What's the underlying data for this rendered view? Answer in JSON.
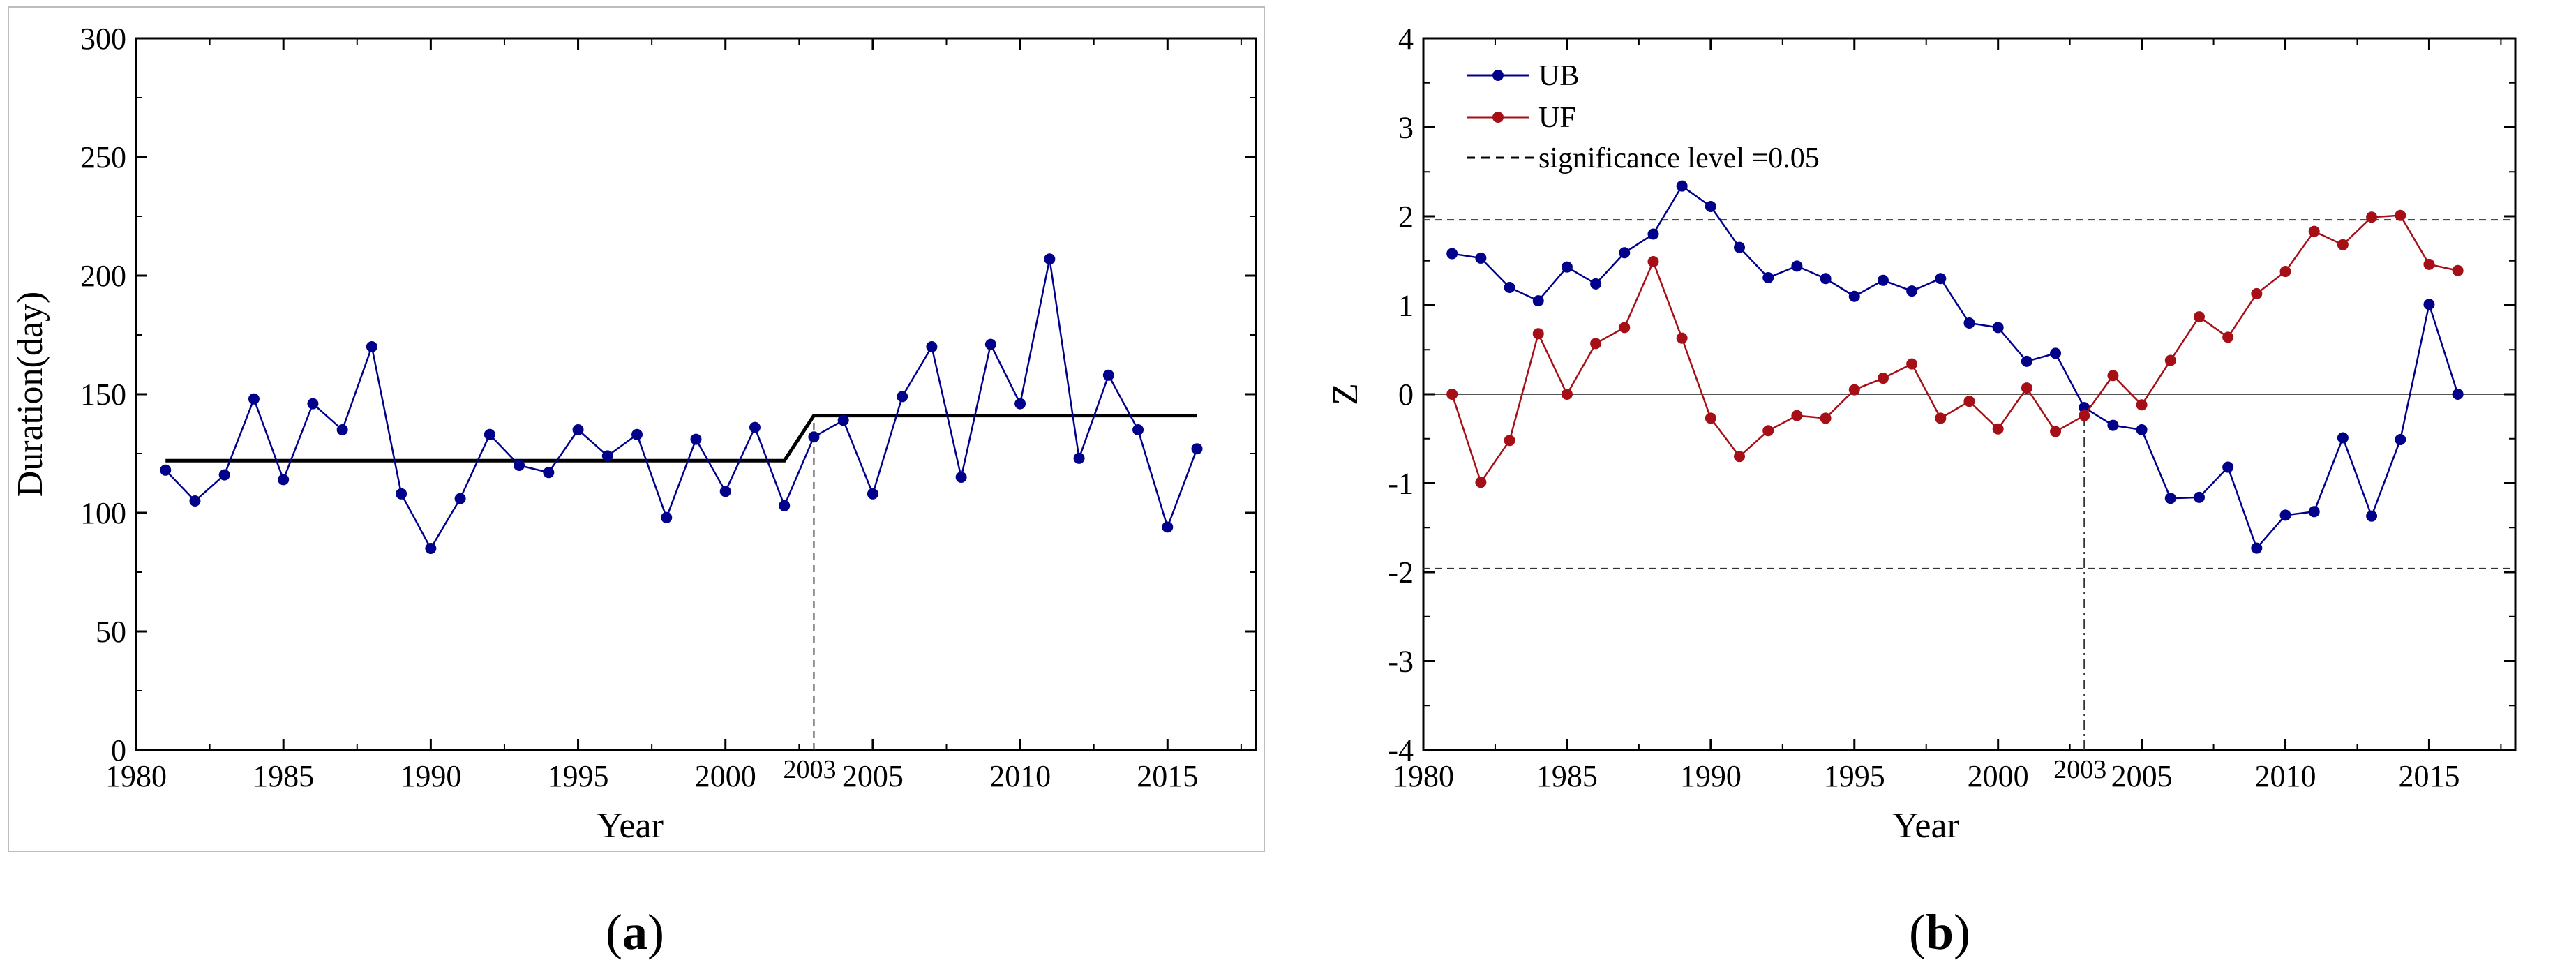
{
  "chart_data": [
    {
      "panel": "a",
      "type": "line",
      "panel_label": {
        "open": "(",
        "letter": "a",
        "close": ")"
      },
      "xlabel": "Year",
      "ylabel": "Duration(day)",
      "xlim": [
        1980,
        2018
      ],
      "ylim": [
        0,
        300
      ],
      "x_ticks": [
        1980,
        1985,
        1990,
        1995,
        2000,
        2005,
        2010,
        2015
      ],
      "y_ticks": [
        0,
        50,
        100,
        150,
        200,
        250,
        300
      ],
      "x": [
        1981,
        1982,
        1983,
        1984,
        1985,
        1986,
        1987,
        1988,
        1989,
        1990,
        1991,
        1992,
        1993,
        1994,
        1995,
        1996,
        1997,
        1998,
        1999,
        2000,
        2001,
        2002,
        2003,
        2004,
        2005,
        2006,
        2007,
        2008,
        2009,
        2010,
        2011,
        2012,
        2013,
        2014,
        2015,
        2016
      ],
      "series": [
        {
          "name": "Duration",
          "color": "#00008b",
          "values": [
            118,
            105,
            116,
            148,
            114,
            146,
            135,
            170,
            108,
            85,
            106,
            133,
            120,
            117,
            135,
            124,
            133,
            98,
            131,
            109,
            136,
            103,
            132,
            139,
            108,
            149,
            170,
            115,
            171,
            146,
            207,
            123,
            158,
            135,
            94,
            127
          ]
        }
      ],
      "step_line": {
        "color": "#000000",
        "points": [
          [
            1981,
            122
          ],
          [
            2002,
            122
          ],
          [
            2003,
            141
          ],
          [
            2016,
            141
          ]
        ]
      },
      "change_point": {
        "year": 2003,
        "label": "2003",
        "value": 132
      }
    },
    {
      "panel": "b",
      "type": "line",
      "panel_label": {
        "open": "(",
        "letter": "b",
        "close": ")"
      },
      "xlabel": "Year",
      "ylabel": "Z",
      "xlim": [
        1980,
        2018
      ],
      "ylim": [
        -4,
        4
      ],
      "x_ticks": [
        1980,
        1985,
        1990,
        1995,
        2000,
        2005,
        2010,
        2015
      ],
      "y_ticks": [
        -4,
        -3,
        -2,
        -1,
        0,
        1,
        2,
        3,
        4
      ],
      "x": [
        1981,
        1982,
        1983,
        1984,
        1985,
        1986,
        1987,
        1988,
        1989,
        1990,
        1991,
        1992,
        1993,
        1994,
        1995,
        1996,
        1997,
        1998,
        1999,
        2000,
        2001,
        2002,
        2003,
        2004,
        2005,
        2006,
        2007,
        2008,
        2009,
        2010,
        2011,
        2012,
        2013,
        2014,
        2015,
        2016
      ],
      "series": [
        {
          "name": "UB",
          "color": "#00008b",
          "values": [
            1.58,
            1.53,
            1.2,
            1.05,
            1.43,
            1.24,
            1.59,
            1.8,
            2.34,
            2.11,
            1.65,
            1.31,
            1.44,
            1.3,
            1.1,
            1.28,
            1.16,
            1.3,
            0.8,
            0.75,
            0.37,
            0.46,
            -0.15,
            -0.35,
            -0.4,
            -1.17,
            -1.16,
            -0.82,
            -1.73,
            -1.36,
            -1.32,
            -0.49,
            -1.37,
            -0.51,
            1.01,
            0.0
          ]
        },
        {
          "name": "UF",
          "color": "#a50f15",
          "values": [
            0.0,
            -0.99,
            -0.52,
            0.68,
            0.0,
            0.57,
            0.75,
            1.49,
            0.63,
            -0.27,
            -0.7,
            -0.41,
            -0.24,
            -0.27,
            0.05,
            0.18,
            0.34,
            -0.27,
            -0.08,
            -0.39,
            0.07,
            -0.42,
            -0.24,
            0.21,
            -0.12,
            0.38,
            0.87,
            0.64,
            1.13,
            1.38,
            1.83,
            1.68,
            1.99,
            2.01,
            1.46,
            1.39
          ]
        }
      ],
      "significance": {
        "label": "significance level =0.05",
        "upper": 1.96,
        "lower": -1.96
      },
      "legend": [
        {
          "name": "UB",
          "color": "#00008b",
          "style": "line-dot"
        },
        {
          "name": "UF",
          "color": "#a50f15",
          "style": "line-dot"
        },
        {
          "name": "significance level =0.05",
          "color": "#000000",
          "style": "dashed"
        }
      ],
      "change_point": {
        "year": 2003,
        "label": "2003"
      }
    }
  ]
}
